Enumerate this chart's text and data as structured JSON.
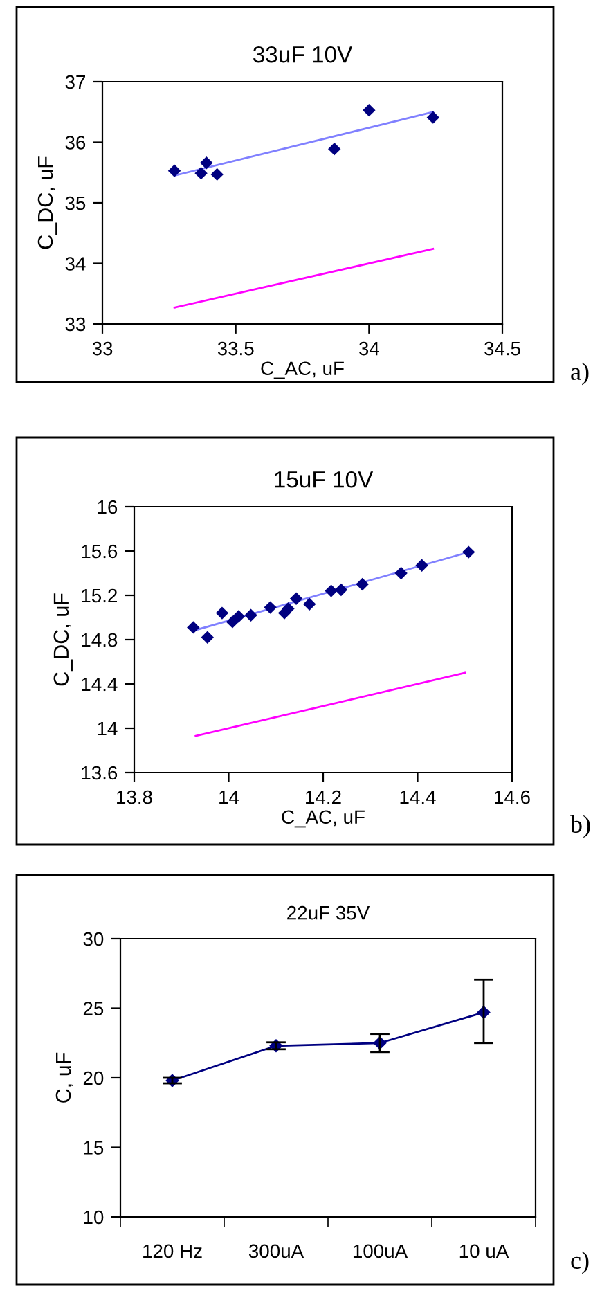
{
  "chart_data": [
    {
      "type": "scatter",
      "title": "33uF 10V",
      "xlabel": "C_AC, uF",
      "ylabel": "C_DC, uF",
      "xlim": [
        33,
        34.5
      ],
      "xticks": [
        33,
        33.5,
        34,
        34.5
      ],
      "ylim": [
        33,
        37
      ],
      "yticks": [
        33,
        34,
        35,
        36,
        37
      ],
      "grid": false,
      "annotations": [
        "a)"
      ],
      "series": [
        {
          "marker": "diamond",
          "color": "#000080",
          "x": [
            33.27,
            33.37,
            33.39,
            33.43,
            33.87,
            34.0,
            34.24
          ],
          "values": [
            35.53,
            35.49,
            35.66,
            35.47,
            35.89,
            36.53,
            36.41
          ]
        },
        {
          "type": "line",
          "color": "#8080ff",
          "x": [
            33.27,
            34.24
          ],
          "values": [
            35.45,
            36.5
          ]
        },
        {
          "type": "line",
          "color": "#ff00ff",
          "x": [
            33.27,
            34.24
          ],
          "values": [
            33.27,
            34.24
          ]
        }
      ]
    },
    {
      "type": "scatter",
      "title": "15uF 10V",
      "xlabel": "C_AC, uF",
      "ylabel": "C_DC, uF",
      "xlim": [
        13.8,
        14.6
      ],
      "xticks": [
        13.8,
        14,
        14.2,
        14.4,
        14.6
      ],
      "ylim": [
        13.6,
        16
      ],
      "yticks": [
        13.6,
        14,
        14.4,
        14.8,
        15.2,
        15.6,
        16
      ],
      "grid": false,
      "annotations": [
        "b)"
      ],
      "series": [
        {
          "marker": "diamond",
          "color": "#000080",
          "x": [
            13.925,
            13.955,
            13.986,
            14.008,
            14.021,
            14.047,
            14.088,
            14.118,
            14.126,
            14.143,
            14.171,
            14.217,
            14.238,
            14.283,
            14.365,
            14.409,
            14.508
          ],
          "values": [
            14.91,
            14.82,
            15.04,
            14.96,
            15.01,
            15.02,
            15.09,
            15.04,
            15.08,
            15.17,
            15.12,
            15.24,
            15.25,
            15.3,
            15.4,
            15.47,
            15.59
          ]
        },
        {
          "type": "line",
          "color": "#8080ff",
          "x": [
            13.925,
            14.508
          ],
          "values": [
            14.88,
            15.59
          ]
        },
        {
          "type": "line",
          "color": "#ff00ff",
          "x": [
            13.93,
            14.5
          ],
          "values": [
            13.93,
            14.5
          ]
        }
      ]
    },
    {
      "type": "line",
      "title": "22uF 35V",
      "ylabel": "C, uF",
      "categories": [
        "120 Hz",
        "300uA",
        "100uA",
        "10 uA"
      ],
      "ylim": [
        10,
        30
      ],
      "yticks": [
        10,
        15,
        20,
        25,
        30
      ],
      "grid": false,
      "annotations": [
        "c)"
      ],
      "series": [
        {
          "marker": "diamond",
          "line_style": "solid",
          "color": "#000080",
          "values": [
            19.8,
            22.3,
            22.5,
            24.7
          ],
          "errors": [
            0.2,
            0.25,
            0.65,
            [
              22.5,
              27.05
            ]
          ]
        }
      ]
    }
  ]
}
